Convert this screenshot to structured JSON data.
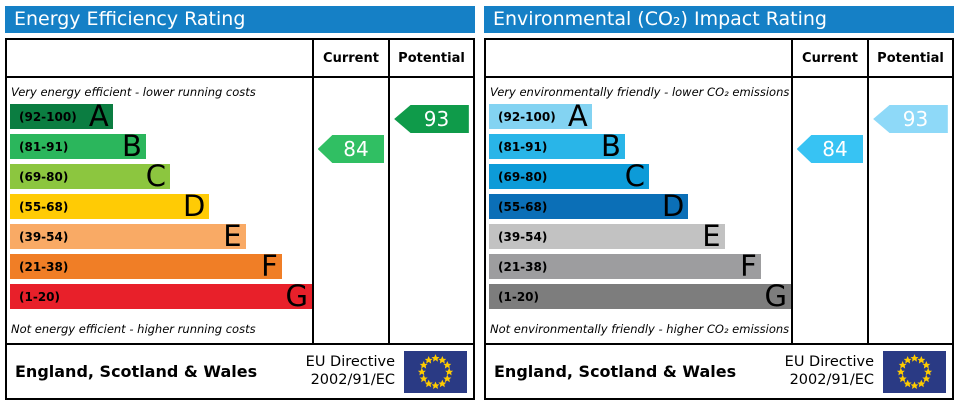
{
  "colors": {
    "header_bg": "#1580c6",
    "border": "#000000"
  },
  "flag": {
    "bg": "#2a3a84",
    "star": "#ffcc00"
  },
  "panels": [
    {
      "title": "Energy Efficiency Rating",
      "columns": {
        "current": "Current",
        "potential": "Potential"
      },
      "top_caption": "Very energy efficient - lower running costs",
      "bottom_caption": "Not energy efficient - higher running costs",
      "bands": [
        {
          "letter": "A",
          "range": "(92-100)",
          "color": "#0b7d41",
          "width_pct": 34
        },
        {
          "letter": "B",
          "range": "(81-91)",
          "color": "#2bb65c",
          "width_pct": 45
        },
        {
          "letter": "C",
          "range": "(69-80)",
          "color": "#8cc63f",
          "width_pct": 53
        },
        {
          "letter": "D",
          "range": "(55-68)",
          "color": "#ffcb05",
          "width_pct": 66
        },
        {
          "letter": "E",
          "range": "(39-54)",
          "color": "#f9aa65",
          "width_pct": 78
        },
        {
          "letter": "F",
          "range": "(21-38)",
          "color": "#f07e26",
          "width_pct": 90
        },
        {
          "letter": "G",
          "range": "(1-20)",
          "color": "#e8202a",
          "width_pct": 100
        }
      ],
      "current": {
        "value": "84",
        "band": "B",
        "color": "#30bf63"
      },
      "potential": {
        "value": "93",
        "band": "A",
        "color": "#0f9b4a"
      },
      "footer": {
        "region": "England, Scotland & Wales",
        "eu_line1": "EU Directive",
        "eu_line2": "2002/91/EC"
      }
    },
    {
      "title": "Environmental (CO₂) Impact Rating",
      "columns": {
        "current": "Current",
        "potential": "Potential"
      },
      "top_caption": "Very environmentally friendly - lower CO₂ emissions",
      "bottom_caption": "Not environmentally friendly - higher CO₂ emissions",
      "bands": [
        {
          "letter": "A",
          "range": "(92-100)",
          "color": "#83d3f2",
          "width_pct": 34
        },
        {
          "letter": "B",
          "range": "(81-91)",
          "color": "#29b5e8",
          "width_pct": 45
        },
        {
          "letter": "C",
          "range": "(69-80)",
          "color": "#0d9bd8",
          "width_pct": 53
        },
        {
          "letter": "D",
          "range": "(55-68)",
          "color": "#0b6fb7",
          "width_pct": 66
        },
        {
          "letter": "E",
          "range": "(39-54)",
          "color": "#c2c2c2",
          "width_pct": 78
        },
        {
          "letter": "F",
          "range": "(21-38)",
          "color": "#9d9d9f",
          "width_pct": 90
        },
        {
          "letter": "G",
          "range": "(1-20)",
          "color": "#7d7d7d",
          "width_pct": 100
        }
      ],
      "current": {
        "value": "84",
        "band": "B",
        "color": "#37c3f3"
      },
      "potential": {
        "value": "93",
        "band": "A",
        "color": "#8ed9f8"
      },
      "footer": {
        "region": "England, Scotland & Wales",
        "eu_line1": "EU Directive",
        "eu_line2": "2002/91/EC"
      }
    }
  ],
  "chart_data": [
    {
      "type": "bar",
      "title": "Energy Efficiency Rating",
      "categories": [
        "A (92-100)",
        "B (81-91)",
        "C (69-80)",
        "D (55-68)",
        "E (39-54)",
        "F (21-38)",
        "G (1-20)"
      ],
      "values": [
        34,
        45,
        53,
        66,
        78,
        90,
        100
      ],
      "value_note": "bar lengths are fixed EPC band widths in % of chart column",
      "current_rating": 84,
      "current_band": "B",
      "potential_rating": 93,
      "potential_band": "A",
      "top_label": "Very energy efficient - lower running costs",
      "bottom_label": "Not energy efficient - higher running costs"
    },
    {
      "type": "bar",
      "title": "Environmental (CO₂) Impact Rating",
      "categories": [
        "A (92-100)",
        "B (81-91)",
        "C (69-80)",
        "D (55-68)",
        "E (39-54)",
        "F (21-38)",
        "G (1-20)"
      ],
      "values": [
        34,
        45,
        53,
        66,
        78,
        90,
        100
      ],
      "value_note": "bar lengths are fixed EPC band widths in % of chart column",
      "current_rating": 84,
      "current_band": "B",
      "potential_rating": 93,
      "potential_band": "A",
      "top_label": "Very environmentally friendly - lower CO₂ emissions",
      "bottom_label": "Not environmentally friendly - higher CO₂ emissions"
    }
  ]
}
